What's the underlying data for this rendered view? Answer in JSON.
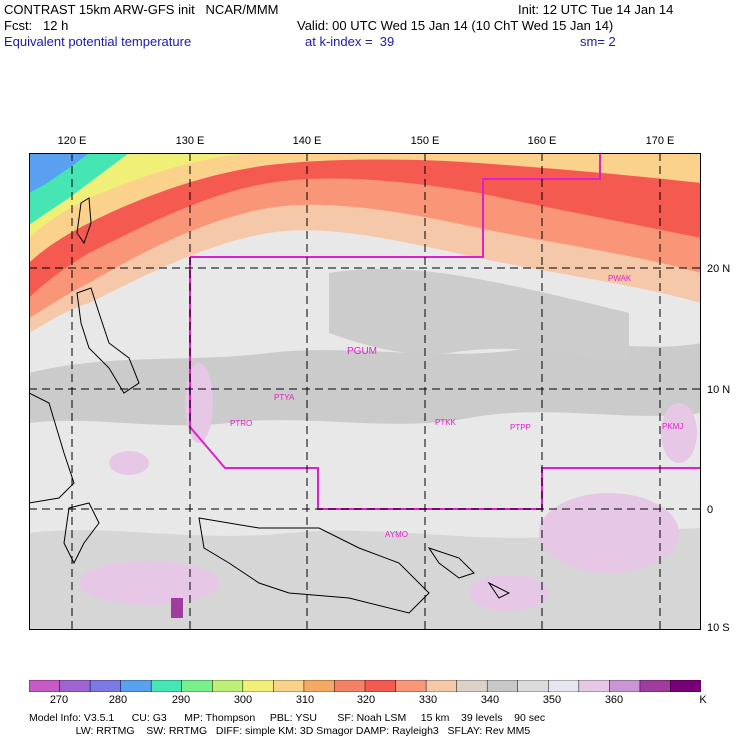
{
  "header": {
    "line1_left": "CONTRAST 15km ARW-GFS init   NCAR/MMM",
    "line1_right": "Init: 12 UTC Tue 14 Jan 14",
    "line2_left": "Fcst:   12 h",
    "line2_right": "Valid: 00 UTC Wed 15 Jan 14 (10 ChT Wed 15 Jan 14)",
    "line3_left": "Equivalent potential temperature",
    "line3_mid": "at k-index =  39",
    "line3_right": "sm= 2"
  },
  "longitude_labels": [
    "120 E",
    "130 E",
    "140 E",
    "150 E",
    "160 E",
    "170 E"
  ],
  "latitude_labels": [
    "20 N",
    "10 N",
    "0",
    "10 S"
  ],
  "stations": [
    {
      "id": "PWAK"
    },
    {
      "id": "PGUM"
    },
    {
      "id": "PTYA"
    },
    {
      "id": "PTRO"
    },
    {
      "id": "PTKK"
    },
    {
      "id": "PTPP"
    },
    {
      "id": "PKMJ"
    },
    {
      "id": "AYMO"
    }
  ],
  "colorbar": {
    "labels": [
      "270",
      "280",
      "290",
      "300",
      "310",
      "320",
      "330",
      "340",
      "350",
      "360"
    ],
    "unit": "K",
    "colors": [
      "#c85ac8",
      "#a064d2",
      "#7c78e6",
      "#5aa0f0",
      "#46e6b4",
      "#78f08c",
      "#bef078",
      "#f0f078",
      "#fad28c",
      "#f5aa64",
      "#f58264",
      "#f55a50",
      "#fa9678",
      "#f5c8aa",
      "#dcd2c8",
      "#c8c8c8",
      "#dcdcdc",
      "#e6e6f0",
      "#e6c8e6",
      "#c896d2",
      "#a03ca0",
      "#780078"
    ]
  },
  "model_info": {
    "line1": "Model Info: V3.5.1      CU: G3      MP: Thompson     PBL: YSU       SF: Noah LSM     15 km    39 levels    90 sec",
    "line2": "                LW: RRTMG    SW: RRTMG   DIFF: simple KM: 3D Smagor DAMP: Rayleigh3   SFLAY: Rev MM5"
  },
  "colors": {
    "boundary": "#e020c8",
    "label_blue": "#1a1aaa",
    "grid": "#000000"
  }
}
